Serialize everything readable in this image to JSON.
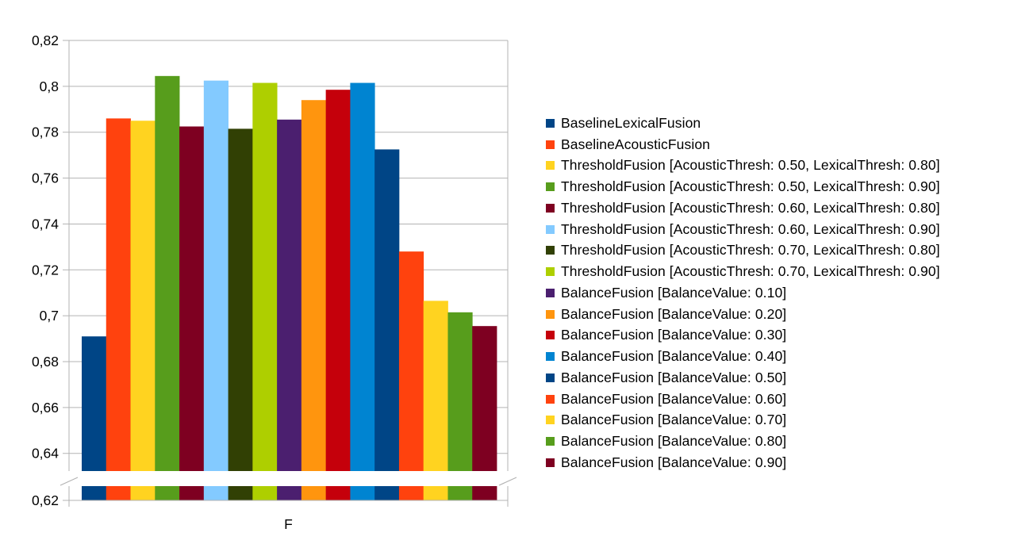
{
  "chart_data": {
    "type": "bar",
    "categories": [
      "F"
    ],
    "ylim": [
      0.62,
      0.82
    ],
    "axis_break": [
      0.62,
      0.633
    ],
    "yticks": [
      {
        "value": 0.62,
        "label": "0,62"
      },
      {
        "value": 0.64,
        "label": "0,64"
      },
      {
        "value": 0.66,
        "label": "0,66"
      },
      {
        "value": 0.68,
        "label": "0,68"
      },
      {
        "value": 0.7,
        "label": "0,7"
      },
      {
        "value": 0.72,
        "label": "0,72"
      },
      {
        "value": 0.74,
        "label": "0,74"
      },
      {
        "value": 0.76,
        "label": "0,76"
      },
      {
        "value": 0.78,
        "label": "0,78"
      },
      {
        "value": 0.8,
        "label": "0,8"
      },
      {
        "value": 0.82,
        "label": "0,82"
      }
    ],
    "grid": true,
    "legend_position": "right",
    "series": [
      {
        "name": "BaselineLexicalFusion",
        "color": "#004586",
        "values": [
          0.691
        ]
      },
      {
        "name": "BaselineAcousticFusion",
        "color": "#ff420e",
        "values": [
          0.786
        ]
      },
      {
        "name": "ThresholdFusion [AcousticThresh: 0.50, LexicalThresh: 0.80]",
        "color": "#ffd320",
        "values": [
          0.785
        ]
      },
      {
        "name": "ThresholdFusion [AcousticThresh: 0.50, LexicalThresh: 0.90]",
        "color": "#579d1c",
        "values": [
          0.8045
        ]
      },
      {
        "name": "ThresholdFusion [AcousticThresh: 0.60, LexicalThresh: 0.80]",
        "color": "#7e0021",
        "values": [
          0.7825
        ]
      },
      {
        "name": "ThresholdFusion [AcousticThresh: 0.60, LexicalThresh: 0.90]",
        "color": "#83caff",
        "values": [
          0.8025
        ]
      },
      {
        "name": "ThresholdFusion [AcousticThresh: 0.70, LexicalThresh: 0.80]",
        "color": "#314004",
        "values": [
          0.7815
        ]
      },
      {
        "name": "ThresholdFusion [AcousticThresh: 0.70, LexicalThresh: 0.90]",
        "color": "#aecf00",
        "values": [
          0.8015
        ]
      },
      {
        "name": "BalanceFusion [BalanceValue: 0.10]",
        "color": "#4b1f6f",
        "values": [
          0.7855
        ]
      },
      {
        "name": "BalanceFusion [BalanceValue: 0.20]",
        "color": "#ff950e",
        "values": [
          0.794
        ]
      },
      {
        "name": "BalanceFusion [BalanceValue: 0.30]",
        "color": "#c5000b",
        "values": [
          0.7985
        ]
      },
      {
        "name": "BalanceFusion [BalanceValue: 0.40]",
        "color": "#0084d1",
        "values": [
          0.8015
        ]
      },
      {
        "name": "BalanceFusion [BalanceValue: 0.50]",
        "color": "#004586",
        "values": [
          0.7725
        ]
      },
      {
        "name": "BalanceFusion [BalanceValue: 0.60]",
        "color": "#ff420e",
        "values": [
          0.728
        ]
      },
      {
        "name": "BalanceFusion [BalanceValue: 0.70]",
        "color": "#ffd320",
        "values": [
          0.7065
        ]
      },
      {
        "name": "BalanceFusion [BalanceValue: 0.80]",
        "color": "#579d1c",
        "values": [
          0.7015
        ]
      },
      {
        "name": "BalanceFusion [BalanceValue: 0.90]",
        "color": "#7e0021",
        "values": [
          0.6955
        ]
      }
    ]
  }
}
